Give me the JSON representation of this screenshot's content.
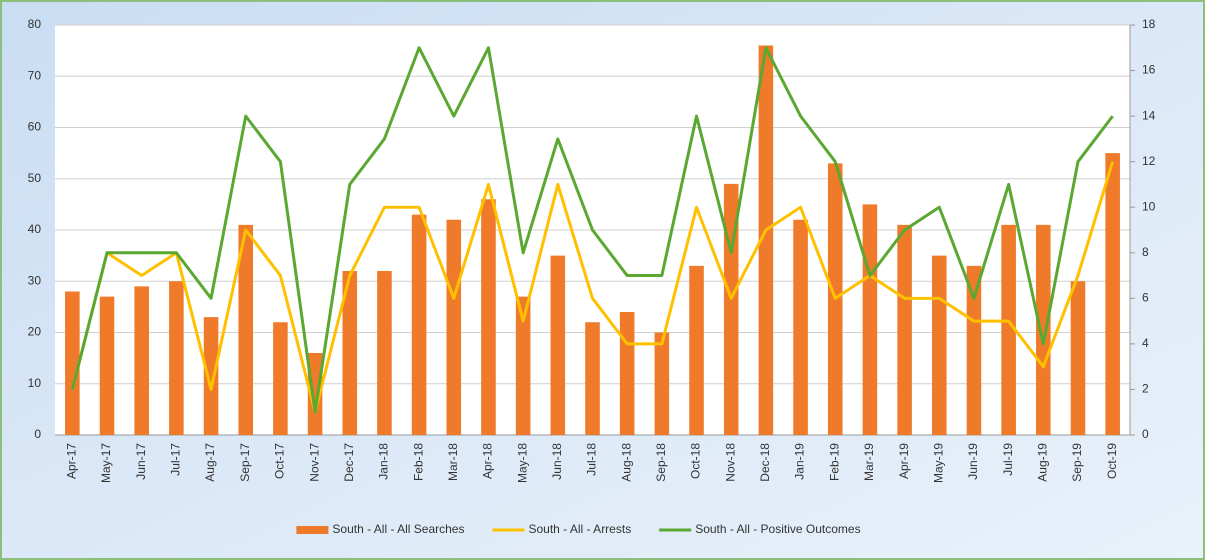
{
  "chart_data": {
    "type": "bar_line",
    "categories": [
      "Apr-17",
      "May-17",
      "Jun-17",
      "Jul-17",
      "Aug-17",
      "Sep-17",
      "Oct-17",
      "Nov-17",
      "Dec-17",
      "Jan-18",
      "Feb-18",
      "Mar-18",
      "Apr-18",
      "May-18",
      "Jun-18",
      "Jul-18",
      "Aug-18",
      "Sep-18",
      "Oct-18",
      "Nov-18",
      "Dec-18",
      "Jan-19",
      "Feb-19",
      "Mar-19",
      "Apr-19",
      "May-19",
      "Jun-19",
      "Jul-19",
      "Aug-19",
      "Sep-19",
      "Oct-19"
    ],
    "series": [
      {
        "name": "South - All - All Searches",
        "type": "bar",
        "color": "#ee7a2a",
        "values": [
          28,
          27,
          29,
          30,
          23,
          41,
          22,
          16,
          32,
          32,
          43,
          42,
          46,
          27,
          35,
          22,
          24,
          20,
          33,
          49,
          76,
          42,
          53,
          45,
          41,
          35,
          33,
          41,
          41,
          30,
          55
        ]
      },
      {
        "name": "South - All - Arrests",
        "type": "line",
        "axis": "y2",
        "color": "#ffc000",
        "values": [
          2,
          8,
          7,
          8,
          2,
          9,
          7,
          1,
          7,
          10,
          10,
          6,
          11,
          5,
          11,
          6,
          4,
          4,
          10,
          6,
          9,
          10,
          6,
          7,
          6,
          6,
          5,
          5,
          3,
          7,
          12
        ]
      },
      {
        "name": "South - All - Positive Outcomes",
        "type": "line",
        "axis": "y2",
        "color": "#5aa832",
        "values": [
          2,
          8,
          8,
          8,
          6,
          14,
          12,
          1,
          11,
          13,
          17,
          14,
          17,
          8,
          13,
          9,
          7,
          7,
          14,
          8,
          17,
          14,
          12,
          7,
          9,
          10,
          6,
          11,
          4,
          12,
          14
        ]
      }
    ],
    "ylim": [
      0,
      80
    ],
    "yticks": [
      0,
      10,
      20,
      30,
      40,
      50,
      60,
      70,
      80
    ],
    "y2lim": [
      0,
      18
    ],
    "y2ticks": [
      0,
      2,
      4,
      6,
      8,
      10,
      12,
      14,
      16,
      18
    ],
    "grid": true,
    "legend": "bottom"
  }
}
